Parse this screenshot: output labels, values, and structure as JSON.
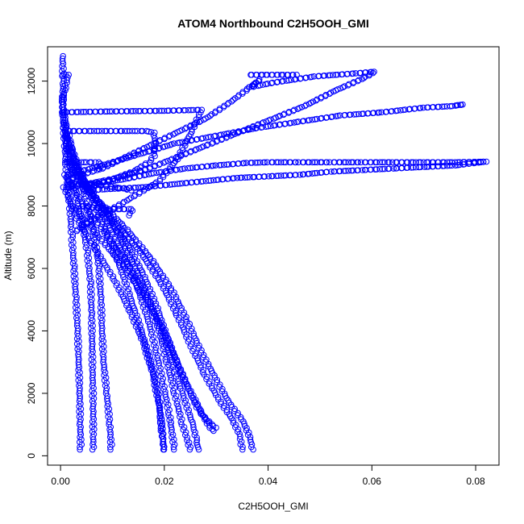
{
  "chart_data": {
    "type": "scatter",
    "title": "ATOM4 Northbound C2H5OOH_GMI",
    "xlabel": "C2H5OOH_GMI",
    "ylabel": "Altitude (m)",
    "xlim": [
      -0.0025,
      0.0845
    ],
    "ylim": [
      -300,
      13100
    ],
    "xticks": [
      "0.00",
      "0.02",
      "0.04",
      "0.06",
      "0.08"
    ],
    "yticks": [
      "0",
      "2000",
      "4000",
      "6000",
      "8000",
      "10000",
      "12000"
    ],
    "grid": false,
    "color": "#0000ff",
    "marker": "open-circle",
    "series": [
      {
        "points": [
          [
            0.0004,
            12800
          ],
          [
            0.0005,
            12000
          ],
          [
            0.0004,
            11000
          ],
          [
            0.0008,
            10000
          ],
          [
            0.0012,
            9000
          ],
          [
            0.0018,
            8000
          ],
          [
            0.0022,
            7000
          ],
          [
            0.0026,
            6000
          ],
          [
            0.003,
            5000
          ],
          [
            0.0033,
            4000
          ],
          [
            0.0035,
            3000
          ],
          [
            0.0037,
            2000
          ],
          [
            0.0038,
            1000
          ],
          [
            0.0039,
            200
          ]
        ]
      },
      {
        "points": [
          [
            0.0003,
            11500
          ],
          [
            0.0009,
            10500
          ],
          [
            0.0016,
            9500
          ],
          [
            0.0028,
            8500
          ],
          [
            0.0041,
            7500
          ],
          [
            0.0052,
            6500
          ],
          [
            0.0058,
            5500
          ],
          [
            0.006,
            4500
          ],
          [
            0.0061,
            3500
          ],
          [
            0.0062,
            2500
          ],
          [
            0.0063,
            1500
          ],
          [
            0.0063,
            200
          ]
        ]
      },
      {
        "points": [
          [
            0.0006,
            11000
          ],
          [
            0.0019,
            10000
          ],
          [
            0.0035,
            9000
          ],
          [
            0.0052,
            8000
          ],
          [
            0.0066,
            7000
          ],
          [
            0.0074,
            6000
          ],
          [
            0.0078,
            5000
          ],
          [
            0.008,
            4000
          ],
          [
            0.0083,
            3000
          ],
          [
            0.0089,
            2000
          ],
          [
            0.0095,
            1000
          ],
          [
            0.0098,
            200
          ]
        ]
      },
      {
        "points": [
          [
            0.0005,
            10600
          ],
          [
            0.0022,
            9800
          ],
          [
            0.0046,
            8800
          ],
          [
            0.0072,
            7800
          ],
          [
            0.0098,
            6800
          ],
          [
            0.012,
            5800
          ],
          [
            0.014,
            4800
          ],
          [
            0.016,
            3800
          ],
          [
            0.0178,
            2800
          ],
          [
            0.019,
            1800
          ],
          [
            0.0195,
            800
          ],
          [
            0.02,
            200
          ]
        ]
      },
      {
        "points": [
          [
            0.0008,
            10300
          ],
          [
            0.003,
            9300
          ],
          [
            0.0062,
            8300
          ],
          [
            0.0095,
            7300
          ],
          [
            0.0125,
            6300
          ],
          [
            0.015,
            5300
          ],
          [
            0.017,
            4300
          ],
          [
            0.0185,
            3300
          ],
          [
            0.0198,
            2300
          ],
          [
            0.021,
            1300
          ],
          [
            0.0216,
            600
          ],
          [
            0.022,
            200
          ]
        ]
      },
      {
        "points": [
          [
            0.001,
            10000
          ],
          [
            0.0038,
            9000
          ],
          [
            0.0078,
            8000
          ],
          [
            0.0115,
            7000
          ],
          [
            0.0145,
            6000
          ],
          [
            0.017,
            5000
          ],
          [
            0.019,
            4000
          ],
          [
            0.0205,
            3000
          ],
          [
            0.022,
            2000
          ],
          [
            0.0235,
            1000
          ],
          [
            0.0245,
            500
          ],
          [
            0.025,
            200
          ]
        ]
      },
      {
        "points": [
          [
            0.0012,
            9800
          ],
          [
            0.0045,
            8800
          ],
          [
            0.0088,
            7800
          ],
          [
            0.0128,
            6800
          ],
          [
            0.016,
            5800
          ],
          [
            0.0185,
            4800
          ],
          [
            0.0205,
            3800
          ],
          [
            0.0228,
            2800
          ],
          [
            0.0252,
            2000
          ],
          [
            0.0275,
            1300
          ],
          [
            0.0288,
            900
          ],
          [
            0.0295,
            800
          ]
        ]
      },
      {
        "points": [
          [
            0.0015,
            9500
          ],
          [
            0.0055,
            8500
          ],
          [
            0.0105,
            7500
          ],
          [
            0.0155,
            6500
          ],
          [
            0.0195,
            5500
          ],
          [
            0.0225,
            4500
          ],
          [
            0.0252,
            3500
          ],
          [
            0.0278,
            2600
          ],
          [
            0.0305,
            1800
          ],
          [
            0.033,
            1200
          ],
          [
            0.0345,
            700
          ],
          [
            0.035,
            200
          ]
        ]
      },
      {
        "points": [
          [
            0.0018,
            9300
          ],
          [
            0.0065,
            8300
          ],
          [
            0.0125,
            7300
          ],
          [
            0.0175,
            6300
          ],
          [
            0.0215,
            5300
          ],
          [
            0.0245,
            4300
          ],
          [
            0.0272,
            3300
          ],
          [
            0.0298,
            2500
          ],
          [
            0.0325,
            1700
          ],
          [
            0.0352,
            1100
          ],
          [
            0.0365,
            600
          ],
          [
            0.037,
            200
          ]
        ]
      },
      {
        "points": [
          [
            0.0009,
            9000
          ],
          [
            0.0045,
            8000
          ],
          [
            0.0092,
            7000
          ],
          [
            0.0135,
            6000
          ],
          [
            0.017,
            5000
          ],
          [
            0.0195,
            4000
          ],
          [
            0.0215,
            3000
          ],
          [
            0.0235,
            2000
          ],
          [
            0.0255,
            1000
          ],
          [
            0.0262,
            500
          ],
          [
            0.0265,
            200
          ]
        ]
      },
      {
        "points": [
          [
            0.0007,
            8600
          ],
          [
            0.0032,
            7600
          ],
          [
            0.0068,
            6600
          ],
          [
            0.0105,
            5600
          ],
          [
            0.0135,
            4600
          ],
          [
            0.016,
            3600
          ],
          [
            0.0178,
            2600
          ],
          [
            0.019,
            1600
          ],
          [
            0.0197,
            700
          ],
          [
            0.0198,
            200
          ]
        ]
      },
      {
        "points": [
          [
            0.0025,
            8000
          ],
          [
            0.0075,
            7000
          ],
          [
            0.0125,
            6000
          ],
          [
            0.0165,
            5000
          ],
          [
            0.02,
            4000
          ],
          [
            0.0225,
            3000
          ],
          [
            0.025,
            2000
          ],
          [
            0.0268,
            1400
          ],
          [
            0.0285,
            1100
          ],
          [
            0.0298,
            900
          ]
        ]
      },
      {
        "points": [
          [
            0.0004,
            11000
          ],
          [
            0.01,
            11030
          ],
          [
            0.02,
            11050
          ],
          [
            0.0272,
            11080
          ],
          [
            0.025,
            10300
          ],
          [
            0.0225,
            9500
          ],
          [
            0.019,
            8800
          ],
          [
            0.015,
            8400
          ],
          [
            0.011,
            8000
          ],
          [
            0.0065,
            7600
          ],
          [
            0.003,
            7200
          ]
        ]
      },
      {
        "points": [
          [
            0.0018,
            10400
          ],
          [
            0.008,
            10400
          ],
          [
            0.0138,
            10400
          ],
          [
            0.0165,
            10400
          ],
          [
            0.018,
            10350
          ],
          [
            0.0182,
            10000
          ],
          [
            0.018,
            9600
          ],
          [
            0.017,
            9400
          ],
          [
            0.014,
            9100
          ],
          [
            0.009,
            8800
          ],
          [
            0.0045,
            8500
          ]
        ]
      },
      {
        "points": [
          [
            0.0004,
            12200
          ],
          [
            0.0015,
            12200
          ],
          [
            0.0008,
            11700
          ],
          [
            0.0005,
            11400
          ]
        ]
      },
      {
        "points": [
          [
            0.0008,
            9400
          ],
          [
            0.003,
            9400
          ],
          [
            0.0055,
            9400
          ],
          [
            0.0072,
            9400
          ],
          [
            0.0075,
            9350
          ],
          [
            0.0072,
            9200
          ]
        ]
      },
      {
        "points": [
          [
            0.0012,
            8700
          ],
          [
            0.004,
            8700
          ],
          [
            0.0085,
            8650
          ],
          [
            0.0125,
            8550
          ],
          [
            0.0135,
            8500
          ]
        ]
      },
      {
        "points": [
          [
            0.004,
            8000
          ],
          [
            0.006,
            7950
          ],
          [
            0.009,
            7900
          ],
          [
            0.012,
            7900
          ],
          [
            0.0135,
            7900
          ],
          [
            0.0138,
            7850
          ],
          [
            0.0132,
            7700
          ]
        ]
      },
      {
        "points": [
          [
            0.0013,
            8800
          ],
          [
            0.004,
            9000
          ],
          [
            0.008,
            9200
          ],
          [
            0.013,
            9600
          ],
          [
            0.018,
            10000
          ],
          [
            0.023,
            10400
          ],
          [
            0.028,
            10800
          ],
          [
            0.0325,
            11300
          ],
          [
            0.0365,
            11800
          ],
          [
            0.0385,
            12050
          ],
          [
            0.0365,
            11800
          ],
          [
            0.041,
            11950
          ],
          [
            0.049,
            12150
          ],
          [
            0.057,
            12250
          ],
          [
            0.0605,
            12300
          ],
          [
            0.0585,
            12100
          ],
          [
            0.053,
            11700
          ],
          [
            0.047,
            11200
          ],
          [
            0.041,
            10800
          ],
          [
            0.035,
            10400
          ],
          [
            0.029,
            10000
          ],
          [
            0.023,
            9600
          ],
          [
            0.017,
            9200
          ],
          [
            0.011,
            8900
          ],
          [
            0.005,
            8700
          ],
          [
            0.0016,
            8600
          ]
        ]
      },
      {
        "points": [
          [
            0.0365,
            12200
          ],
          [
            0.0395,
            12200
          ],
          [
            0.0425,
            12200
          ],
          [
            0.0455,
            12200
          ]
        ]
      },
      {
        "points": [
          [
            0.001,
            8600
          ],
          [
            0.006,
            8700
          ],
          [
            0.012,
            8850
          ],
          [
            0.018,
            9050
          ],
          [
            0.024,
            9200
          ],
          [
            0.03,
            9300
          ],
          [
            0.036,
            9380
          ],
          [
            0.04,
            9400
          ],
          [
            0.046,
            9400
          ],
          [
            0.052,
            9400
          ],
          [
            0.058,
            9400
          ],
          [
            0.064,
            9400
          ],
          [
            0.07,
            9400
          ],
          [
            0.076,
            9400
          ],
          [
            0.082,
            9420
          ],
          [
            0.076,
            9300
          ],
          [
            0.07,
            9250
          ],
          [
            0.064,
            9200
          ],
          [
            0.058,
            9150
          ],
          [
            0.052,
            9100
          ],
          [
            0.046,
            9000
          ],
          [
            0.04,
            8950
          ],
          [
            0.034,
            8900
          ],
          [
            0.028,
            8800
          ],
          [
            0.022,
            8700
          ],
          [
            0.016,
            8600
          ],
          [
            0.01,
            8550
          ],
          [
            0.005,
            8500
          ]
        ]
      },
      {
        "points": [
          [
            0.0015,
            9000
          ],
          [
            0.008,
            9300
          ],
          [
            0.015,
            9650
          ],
          [
            0.022,
            10000
          ],
          [
            0.03,
            10250
          ],
          [
            0.038,
            10500
          ],
          [
            0.046,
            10700
          ],
          [
            0.054,
            10900
          ],
          [
            0.062,
            11000
          ],
          [
            0.07,
            11150
          ],
          [
            0.0755,
            11200
          ],
          [
            0.0775,
            11250
          ],
          [
            0.0765,
            11230
          ]
        ]
      }
    ]
  }
}
